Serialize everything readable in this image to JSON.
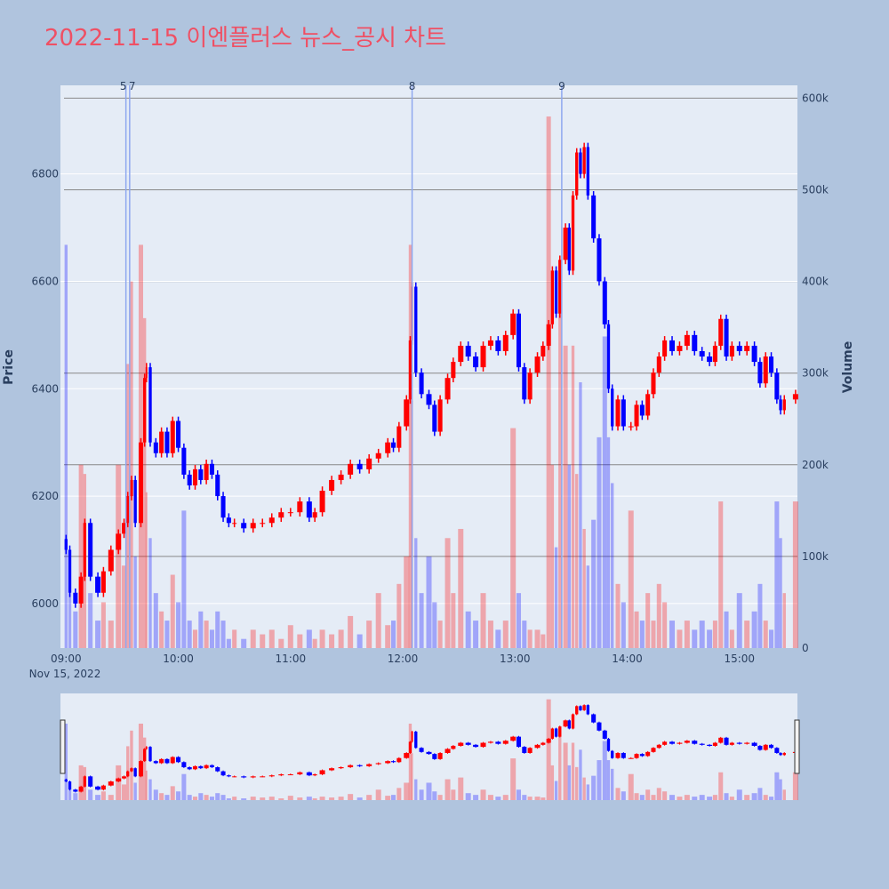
{
  "title": "2022-11-15 이엔플러스 뉴스_공시 차트",
  "colors": {
    "up": "#ff0000",
    "down": "#0000ff",
    "background": "#b0c4de",
    "plot_bg": "#e5ecf6",
    "title": "#ef5064",
    "annotation": "#8fa8ef"
  },
  "chart_data": {
    "type": "candlestick",
    "yaxis_title": "Price",
    "y2axis_title": "Volume",
    "price_range": [
      5917,
      6965
    ],
    "volume_range": [
      0,
      614000
    ],
    "price_ticks": [
      "6000",
      "6200",
      "6400",
      "6600",
      "6800"
    ],
    "volume_ticks": [
      "0",
      "100k",
      "200k",
      "300k",
      "400k",
      "500k",
      "600k"
    ],
    "x_ticks": [
      "09:00",
      "10:00",
      "11:00",
      "12:00",
      "13:00",
      "14:00",
      "15:00"
    ],
    "x_date_label": "Nov 15, 2022",
    "x_range": [
      "08:57",
      "15:31"
    ],
    "rangeslider": true,
    "annotations": [
      {
        "label": "5",
        "time": "09:32"
      },
      {
        "label": "7",
        "time": "09:34"
      },
      {
        "label": "8",
        "time": "12:05"
      },
      {
        "label": "9",
        "time": "13:25"
      }
    ],
    "points_fields": [
      "time",
      "close",
      "volume"
    ],
    "points": [
      [
        "09:00",
        6100,
        440000
      ],
      [
        "09:02",
        6020,
        60000
      ],
      [
        "09:05",
        6000,
        40000
      ],
      [
        "09:08",
        6050,
        200000
      ],
      [
        "09:10",
        6150,
        190000
      ],
      [
        "09:13",
        6050,
        60000
      ],
      [
        "09:17",
        6020,
        30000
      ],
      [
        "09:20",
        6060,
        50000
      ],
      [
        "09:24",
        6100,
        30000
      ],
      [
        "09:28",
        6130,
        200000
      ],
      [
        "09:31",
        6150,
        90000
      ],
      [
        "09:33",
        6200,
        310000
      ],
      [
        "09:35",
        6230,
        400000
      ],
      [
        "09:37",
        6150,
        100000
      ],
      [
        "09:40",
        6300,
        440000
      ],
      [
        "09:42",
        6420,
        360000
      ],
      [
        "09:43",
        6440,
        170000
      ],
      [
        "09:45",
        6300,
        120000
      ],
      [
        "09:48",
        6280,
        60000
      ],
      [
        "09:51",
        6320,
        40000
      ],
      [
        "09:54",
        6280,
        30000
      ],
      [
        "09:57",
        6340,
        80000
      ],
      [
        "10:00",
        6290,
        50000
      ],
      [
        "10:03",
        6240,
        150000
      ],
      [
        "10:06",
        6220,
        30000
      ],
      [
        "10:09",
        6250,
        20000
      ],
      [
        "10:12",
        6230,
        40000
      ],
      [
        "10:15",
        6260,
        30000
      ],
      [
        "10:18",
        6240,
        20000
      ],
      [
        "10:21",
        6200,
        40000
      ],
      [
        "10:24",
        6160,
        30000
      ],
      [
        "10:27",
        6150,
        10000
      ],
      [
        "10:30",
        6150,
        20000
      ],
      [
        "10:35",
        6140,
        10000
      ],
      [
        "10:40",
        6150,
        20000
      ],
      [
        "10:45",
        6150,
        15000
      ],
      [
        "10:50",
        6160,
        20000
      ],
      [
        "10:55",
        6170,
        10000
      ],
      [
        "11:00",
        6170,
        25000
      ],
      [
        "11:05",
        6190,
        15000
      ],
      [
        "11:10",
        6160,
        20000
      ],
      [
        "11:13",
        6170,
        10000
      ],
      [
        "11:17",
        6210,
        20000
      ],
      [
        "11:22",
        6230,
        15000
      ],
      [
        "11:27",
        6240,
        20000
      ],
      [
        "11:32",
        6260,
        35000
      ],
      [
        "11:37",
        6250,
        15000
      ],
      [
        "11:42",
        6270,
        30000
      ],
      [
        "11:47",
        6280,
        60000
      ],
      [
        "11:52",
        6300,
        25000
      ],
      [
        "11:55",
        6290,
        30000
      ],
      [
        "11:58",
        6330,
        70000
      ],
      [
        "12:02",
        6380,
        100000
      ],
      [
        "12:04",
        6490,
        440000
      ],
      [
        "12:05",
        6590,
        270000
      ],
      [
        "12:07",
        6430,
        120000
      ],
      [
        "12:10",
        6390,
        60000
      ],
      [
        "12:14",
        6370,
        100000
      ],
      [
        "12:17",
        6320,
        50000
      ],
      [
        "12:20",
        6380,
        30000
      ],
      [
        "12:24",
        6420,
        120000
      ],
      [
        "12:27",
        6450,
        60000
      ],
      [
        "12:31",
        6480,
        130000
      ],
      [
        "12:35",
        6460,
        40000
      ],
      [
        "12:39",
        6440,
        30000
      ],
      [
        "12:43",
        6480,
        60000
      ],
      [
        "12:47",
        6490,
        30000
      ],
      [
        "12:51",
        6470,
        20000
      ],
      [
        "12:55",
        6500,
        30000
      ],
      [
        "12:59",
        6540,
        240000
      ],
      [
        "13:02",
        6440,
        60000
      ],
      [
        "13:05",
        6380,
        30000
      ],
      [
        "13:08",
        6430,
        20000
      ],
      [
        "13:12",
        6460,
        20000
      ],
      [
        "13:15",
        6480,
        15000
      ],
      [
        "13:18",
        6520,
        580000
      ],
      [
        "13:20",
        6620,
        200000
      ],
      [
        "13:22",
        6540,
        110000
      ],
      [
        "13:24",
        6640,
        400000
      ],
      [
        "13:27",
        6700,
        330000
      ],
      [
        "13:29",
        6620,
        200000
      ],
      [
        "13:31",
        6760,
        330000
      ],
      [
        "13:33",
        6840,
        190000
      ],
      [
        "13:35",
        6800,
        290000
      ],
      [
        "13:37",
        6850,
        130000
      ],
      [
        "13:39",
        6760,
        90000
      ],
      [
        "13:42",
        6680,
        140000
      ],
      [
        "13:45",
        6600,
        230000
      ],
      [
        "13:48",
        6520,
        340000
      ],
      [
        "13:50",
        6400,
        230000
      ],
      [
        "13:52",
        6330,
        180000
      ],
      [
        "13:55",
        6380,
        70000
      ],
      [
        "13:58",
        6330,
        50000
      ],
      [
        "14:02",
        6330,
        150000
      ],
      [
        "14:05",
        6370,
        40000
      ],
      [
        "14:08",
        6350,
        30000
      ],
      [
        "14:11",
        6390,
        60000
      ],
      [
        "14:14",
        6430,
        30000
      ],
      [
        "14:17",
        6460,
        70000
      ],
      [
        "14:20",
        6490,
        50000
      ],
      [
        "14:24",
        6470,
        30000
      ],
      [
        "14:28",
        6480,
        20000
      ],
      [
        "14:32",
        6500,
        30000
      ],
      [
        "14:36",
        6470,
        20000
      ],
      [
        "14:40",
        6460,
        30000
      ],
      [
        "14:44",
        6450,
        20000
      ],
      [
        "14:47",
        6480,
        30000
      ],
      [
        "14:50",
        6530,
        160000
      ],
      [
        "14:53",
        6460,
        40000
      ],
      [
        "14:56",
        6480,
        20000
      ],
      [
        "15:00",
        6470,
        60000
      ],
      [
        "15:04",
        6480,
        30000
      ],
      [
        "15:08",
        6450,
        40000
      ],
      [
        "15:11",
        6410,
        70000
      ],
      [
        "15:14",
        6460,
        30000
      ],
      [
        "15:17",
        6430,
        20000
      ],
      [
        "15:20",
        6380,
        160000
      ],
      [
        "15:22",
        6360,
        120000
      ],
      [
        "15:24",
        6380,
        60000
      ],
      [
        "15:30",
        6390,
        160000
      ]
    ]
  }
}
